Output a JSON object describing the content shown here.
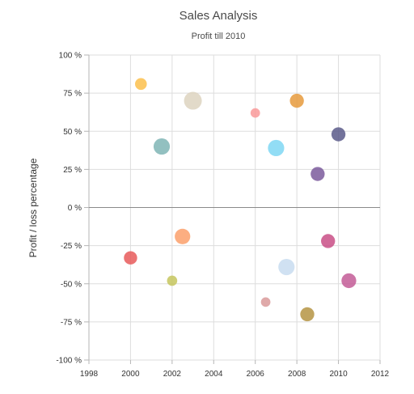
{
  "chart_data": {
    "type": "scatter",
    "title": "Sales Analysis",
    "subtitle": "Profit till 2010",
    "xlabel": "",
    "ylabel": "Profit / loss percentage",
    "xlim": [
      1998,
      2012
    ],
    "ylim": [
      -100,
      100
    ],
    "x_ticks": [
      1998,
      2000,
      2002,
      2004,
      2006,
      2008,
      2010,
      2012
    ],
    "x_tick_labels": [
      "1998",
      "2000",
      "2002",
      "2004",
      "2006",
      "2008",
      "2010",
      "2012"
    ],
    "y_ticks": [
      100,
      75,
      50,
      25,
      0,
      -25,
      -50,
      -75,
      -100
    ],
    "y_tick_labels": [
      "100 %",
      "75 %",
      "50 %",
      "25 %",
      "0 %",
      "-25 %",
      "-50 %",
      "-75 %",
      "-100 %"
    ],
    "grid": true,
    "legend": "none",
    "points": [
      {
        "x": 2000.5,
        "y": 81,
        "size": 0.35,
        "color": "#fbbf4c"
      },
      {
        "x": 2001.5,
        "y": 40,
        "size": 0.65,
        "color": "#7fb5b5"
      },
      {
        "x": 2003,
        "y": 70,
        "size": 0.75,
        "color": "#ddd3c0"
      },
      {
        "x": 2006,
        "y": 62,
        "size": 0.2,
        "color": "#f99999"
      },
      {
        "x": 2007,
        "y": 39,
        "size": 0.65,
        "color": "#7fd7f3"
      },
      {
        "x": 2008,
        "y": 70,
        "size": 0.5,
        "color": "#e69a3c"
      },
      {
        "x": 2009,
        "y": 22,
        "size": 0.5,
        "color": "#7b5b9c"
      },
      {
        "x": 2010,
        "y": 48,
        "size": 0.5,
        "color": "#5b5b8a"
      },
      {
        "x": 2000,
        "y": -33,
        "size": 0.45,
        "color": "#e85a5a"
      },
      {
        "x": 2002,
        "y": -48,
        "size": 0.25,
        "color": "#c5c55e"
      },
      {
        "x": 2002.5,
        "y": -19,
        "size": 0.6,
        "color": "#fba06b"
      },
      {
        "x": 2006.5,
        "y": -62,
        "size": 0.2,
        "color": "#d99a9a"
      },
      {
        "x": 2007.5,
        "y": -39,
        "size": 0.65,
        "color": "#c8dcf0"
      },
      {
        "x": 2008.5,
        "y": -70,
        "size": 0.5,
        "color": "#b59443"
      },
      {
        "x": 2009.5,
        "y": -22,
        "size": 0.5,
        "color": "#c94f86"
      },
      {
        "x": 2010.5,
        "y": -48,
        "size": 0.55,
        "color": "#c35c96"
      }
    ]
  }
}
